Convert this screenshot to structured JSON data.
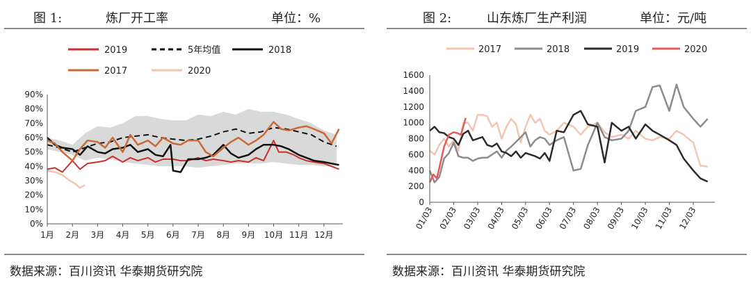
{
  "left": {
    "figure_no": "图 1:",
    "title": "炼厂开工率",
    "unit": "单位：%",
    "source": "数据来源：百川资讯   华泰期货研究院"
  },
  "right": {
    "figure_no": "图 2:",
    "title": "山东炼厂生产利润",
    "unit": "单位：元/吨",
    "source": "数据来源：百川资讯   华泰期货研究院"
  },
  "chart_data": [
    {
      "type": "line",
      "title": "炼厂开工率",
      "categories": [
        "1月",
        "2月",
        "3月",
        "4月",
        "5月",
        "6月",
        "7月",
        "8月",
        "9月",
        "10月",
        "11月",
        "12月"
      ],
      "y_ticks": [
        "0%",
        "10%",
        "20%",
        "30%",
        "40%",
        "50%",
        "60%",
        "70%",
        "80%",
        "90%"
      ],
      "ylim": [
        0,
        90
      ],
      "legend_placement": "top",
      "band": {
        "x": [
          1.0,
          1.5,
          2.0,
          2.5,
          3.0,
          3.5,
          4.0,
          4.5,
          5.0,
          5.5,
          6.0,
          6.5,
          7.0,
          7.5,
          8.0,
          8.5,
          9.0,
          9.5,
          10.0,
          10.5,
          11.0,
          11.5,
          12.0,
          12.5
        ],
        "high": [
          60,
          58,
          55,
          63,
          68,
          67,
          70,
          75,
          75,
          73,
          72,
          72,
          76,
          75,
          78,
          76,
          80,
          78,
          78,
          76,
          73,
          70,
          65,
          62
        ],
        "low": [
          52,
          50,
          48,
          44,
          46,
          45,
          43,
          42,
          41,
          40,
          40,
          40,
          39,
          40,
          41,
          42,
          42,
          42,
          43,
          42,
          41,
          41,
          40,
          40
        ]
      },
      "series": [
        {
          "name": "2019",
          "color": "#c8302c",
          "width": 2,
          "dash": "",
          "x": [
            1.0,
            1.3,
            1.6,
            2.0,
            2.3,
            2.6,
            3.0,
            3.3,
            3.6,
            4.0,
            4.3,
            4.6,
            5.0,
            5.3,
            5.6,
            6.0,
            6.3,
            6.6,
            7.0,
            7.3,
            7.6,
            8.0,
            8.3,
            8.6,
            9.0,
            9.3,
            9.6,
            10.0,
            10.2,
            10.5,
            10.8,
            11.0,
            11.3,
            11.6,
            12.0,
            12.3,
            12.6
          ],
          "y": [
            38,
            39,
            36,
            44,
            38,
            42,
            43,
            44,
            47,
            43,
            46,
            44,
            46,
            43,
            45,
            45,
            44,
            44,
            46,
            44,
            45,
            44,
            43,
            44,
            43,
            46,
            44,
            58,
            50,
            50,
            48,
            46,
            44,
            43,
            42,
            40,
            38
          ]
        },
        {
          "name": "5年均值",
          "color": "#111111",
          "width": 2,
          "dash": "8,5",
          "x": [
            1.0,
            1.5,
            2.0,
            2.5,
            3.0,
            3.5,
            4.0,
            4.5,
            5.0,
            5.5,
            6.0,
            6.5,
            7.0,
            7.5,
            8.0,
            8.5,
            9.0,
            9.5,
            10.0,
            10.5,
            11.0,
            11.5,
            12.0,
            12.5
          ],
          "y": [
            55,
            53,
            50,
            53,
            56,
            57,
            60,
            61,
            62,
            60,
            59,
            58,
            59,
            61,
            64,
            66,
            63,
            64,
            67,
            66,
            64,
            62,
            57,
            54
          ]
        },
        {
          "name": "2018",
          "color": "#111111",
          "width": 2.5,
          "dash": "",
          "x": [
            1.0,
            1.3,
            1.6,
            2.0,
            2.3,
            2.6,
            3.0,
            3.3,
            3.6,
            4.0,
            4.3,
            4.6,
            5.0,
            5.3,
            5.6,
            5.9,
            6.0,
            6.3,
            6.6,
            7.0,
            7.3,
            7.6,
            8.0,
            8.3,
            8.6,
            9.0,
            9.3,
            9.6,
            10.0,
            10.3,
            10.6,
            11.0,
            11.3,
            11.6,
            12.0,
            12.3,
            12.6
          ],
          "y": [
            60,
            55,
            53,
            52,
            48,
            54,
            50,
            49,
            52,
            53,
            55,
            50,
            52,
            48,
            47,
            55,
            37,
            36,
            45,
            45,
            46,
            48,
            55,
            49,
            46,
            48,
            52,
            55,
            55,
            54,
            52,
            48,
            46,
            44,
            43,
            42,
            41
          ]
        },
        {
          "name": "2017",
          "color": "#c96a36",
          "width": 2.5,
          "dash": "",
          "x": [
            1.0,
            1.3,
            1.6,
            2.0,
            2.3,
            2.6,
            3.0,
            3.3,
            3.6,
            4.0,
            4.3,
            4.6,
            5.0,
            5.3,
            5.6,
            6.0,
            6.3,
            6.6,
            7.0,
            7.3,
            7.6,
            8.0,
            8.3,
            8.6,
            9.0,
            9.3,
            9.6,
            10.0,
            10.3,
            10.6,
            11.0,
            11.3,
            11.6,
            12.0,
            12.3,
            12.6
          ],
          "y": [
            58,
            56,
            50,
            44,
            52,
            58,
            57,
            53,
            60,
            50,
            62,
            55,
            58,
            54,
            60,
            56,
            55,
            58,
            58,
            50,
            47,
            53,
            57,
            60,
            55,
            58,
            62,
            71,
            66,
            65,
            67,
            68,
            66,
            63,
            56,
            66
          ]
        },
        {
          "name": "2020",
          "color": "#f2c5b2",
          "width": 2.5,
          "dash": "",
          "x": [
            1.0,
            1.3,
            1.6,
            1.9,
            2.1,
            2.3,
            2.5
          ],
          "y": [
            37,
            36,
            34,
            30,
            28,
            25,
            27
          ]
        }
      ]
    },
    {
      "type": "line",
      "title": "山东炼厂生产利润",
      "x_ticks": [
        "01/03",
        "02/03",
        "03/03",
        "04/03",
        "05/03",
        "06/03",
        "07/03",
        "08/03",
        "09/03",
        "10/03",
        "11/03",
        "12/03"
      ],
      "y_ticks": [
        "0",
        "200",
        "400",
        "600",
        "800",
        "1000",
        "1200",
        "1400",
        "1600"
      ],
      "ylim": [
        0,
        1600
      ],
      "legend_placement": "top",
      "series": [
        {
          "name": "2017",
          "color": "#f2c5b2",
          "width": 2.5,
          "x": [
            1.0,
            1.2,
            1.4,
            1.6,
            1.8,
            2.0,
            2.2,
            2.4,
            2.6,
            2.8,
            3.0,
            3.2,
            3.4,
            3.6,
            3.8,
            4.0,
            4.2,
            4.4,
            4.6,
            4.8,
            5.0,
            5.2,
            5.4,
            5.6,
            5.8,
            6.0,
            6.3,
            6.6,
            7.0,
            7.3,
            7.6,
            8.0,
            8.3,
            8.6,
            9.0,
            9.3,
            9.6,
            10.0,
            10.3,
            10.6,
            11.0,
            11.3,
            11.6,
            12.0,
            12.3,
            12.6
          ],
          "y": [
            650,
            600,
            720,
            800,
            700,
            780,
            650,
            1000,
            1000,
            900,
            1100,
            1100,
            1080,
            950,
            1000,
            800,
            950,
            1050,
            980,
            750,
            950,
            1100,
            1000,
            1050,
            900,
            850,
            900,
            1000,
            950,
            850,
            950,
            1000,
            880,
            820,
            850,
            800,
            900,
            800,
            780,
            820,
            800,
            900,
            850,
            750,
            460,
            450
          ]
        },
        {
          "name": "2018",
          "color": "#8c8c8c",
          "width": 2.5,
          "x": [
            1.0,
            1.2,
            1.4,
            1.6,
            1.8,
            2.0,
            2.2,
            2.4,
            2.6,
            2.8,
            3.0,
            3.2,
            3.4,
            3.6,
            3.8,
            4.0,
            4.2,
            4.4,
            4.6,
            4.8,
            5.0,
            5.2,
            5.4,
            5.6,
            5.8,
            6.0,
            6.3,
            6.6,
            7.0,
            7.3,
            7.6,
            8.0,
            8.3,
            8.6,
            9.0,
            9.3,
            9.6,
            10.0,
            10.3,
            10.6,
            11.0,
            11.3,
            11.6,
            12.0,
            12.3,
            12.6
          ],
          "y": [
            400,
            250,
            320,
            550,
            620,
            750,
            580,
            560,
            560,
            520,
            550,
            560,
            560,
            600,
            640,
            560,
            650,
            700,
            760,
            820,
            880,
            700,
            780,
            820,
            800,
            720,
            780,
            820,
            400,
            420,
            720,
            1000,
            820,
            780,
            800,
            900,
            1150,
            1200,
            1450,
            1470,
            1150,
            1480,
            1200,
            1050,
            950,
            1050
          ]
        },
        {
          "name": "2019",
          "color": "#2b2b2b",
          "width": 2.5,
          "x": [
            1.0,
            1.2,
            1.4,
            1.6,
            1.8,
            2.0,
            2.2,
            2.4,
            2.6,
            2.8,
            3.0,
            3.2,
            3.4,
            3.6,
            3.8,
            4.0,
            4.2,
            4.4,
            4.6,
            4.8,
            5.0,
            5.2,
            5.4,
            5.6,
            5.8,
            6.0,
            6.3,
            6.6,
            7.0,
            7.3,
            7.6,
            8.0,
            8.3,
            8.6,
            9.0,
            9.3,
            9.6,
            10.0,
            10.3,
            10.6,
            11.0,
            11.3,
            11.6,
            12.0,
            12.3,
            12.6
          ],
          "y": [
            900,
            950,
            880,
            870,
            820,
            800,
            720,
            860,
            900,
            780,
            800,
            820,
            720,
            700,
            740,
            640,
            620,
            580,
            640,
            560,
            620,
            600,
            580,
            550,
            620,
            520,
            900,
            880,
            1100,
            1150,
            980,
            950,
            500,
            1000,
            900,
            950,
            800,
            980,
            900,
            850,
            780,
            720,
            550,
            400,
            300,
            260
          ]
        },
        {
          "name": "2020",
          "color": "#e45a5a",
          "width": 2.5,
          "x": [
            1.0,
            1.15,
            1.3,
            1.45,
            1.6,
            1.8,
            2.0,
            2.15,
            2.3,
            2.4,
            2.5
          ],
          "y": [
            250,
            350,
            300,
            500,
            700,
            850,
            880,
            870,
            850,
            950,
            1060
          ]
        }
      ]
    }
  ]
}
